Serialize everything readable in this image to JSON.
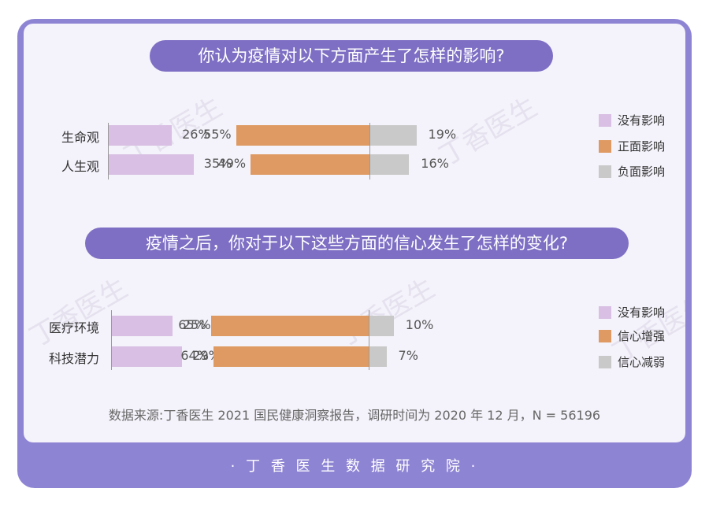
{
  "chart_data": [
    {
      "type": "bar",
      "title": "你认为疫情对以下方面产生了怎样的影响?",
      "categories": [
        "生命观",
        "人生观"
      ],
      "series": [
        {
          "name": "没有影响",
          "values": [
            26,
            35
          ]
        },
        {
          "name": "正面影响",
          "values": [
            55,
            49
          ]
        },
        {
          "name": "负面影响",
          "values": [
            19,
            16
          ]
        }
      ],
      "value_format": "{v}%"
    },
    {
      "type": "bar",
      "title": "疫情之后，你对于以下这些方面的信心发生了怎样的变化?",
      "categories": [
        "医疗环境",
        "科技潜力"
      ],
      "series": [
        {
          "name": "没有影响",
          "values": [
            25,
            29
          ]
        },
        {
          "name": "信心增强",
          "values": [
            65,
            64
          ]
        },
        {
          "name": "信心减弱",
          "values": [
            10,
            7
          ]
        }
      ],
      "value_format": "{v}%"
    }
  ],
  "colors": {
    "no_effect": "#d8bfe3",
    "positive": "#de9a62",
    "negative": "#c9c9c9",
    "accent": "#7e6fc4",
    "frame": "#8e84d4"
  },
  "watermark": "丁香医生",
  "source": "数据来源:丁香医生 2021 国民健康洞察报告，调研时间为 2020 年 12 月，N = 56196",
  "footer": "· 丁 香 医 生 数 据 研 究 院 ·"
}
